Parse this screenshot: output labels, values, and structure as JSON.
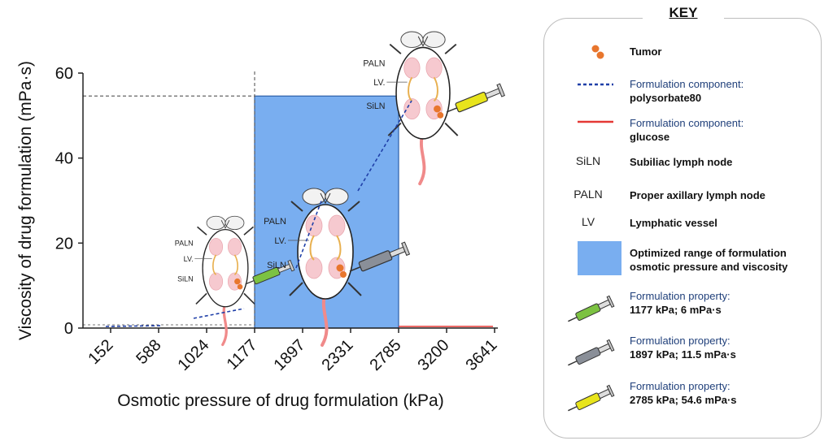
{
  "chart_data": {
    "type": "scatter",
    "xlabel": "Osmotic pressure of drug formulation (kPa)",
    "ylabel": "Viscosity of drug formulation (mPa·s)",
    "x_tick_labels": [
      "152",
      "588",
      "1024",
      "1177",
      "1897",
      "2331",
      "2785",
      "3200",
      "3641"
    ],
    "y_ticks": [
      0,
      20,
      40,
      60
    ],
    "ylim": [
      0,
      60
    ],
    "optimized_range": {
      "x_from": "1177",
      "x_to": "2785",
      "y_from": 0,
      "y_to": 54.6
    },
    "reference_lines": {
      "x": "1177",
      "y": 54.6
    },
    "points": [
      {
        "x": "1177",
        "y": 6,
        "syringe_color": "#7cc242"
      },
      {
        "x": "1897",
        "y": 11.5,
        "syringe_color": "#8a8f98"
      },
      {
        "x": "2785",
        "y": 54.6,
        "syringe_color": "#e8e41c"
      }
    ],
    "mouse_labels": [
      "PALN",
      "LV.",
      "SiLN"
    ]
  },
  "key": {
    "title": "KEY",
    "items": [
      {
        "label": "Tumor"
      },
      {
        "label_top": "Formulation component:",
        "label_bottom": "polysorbate80",
        "color": "#1f3fa8"
      },
      {
        "label_top": "Formulation component:",
        "label_bottom": "glucose",
        "color": "#e53935"
      },
      {
        "abbr": "SiLN",
        "label": "Subiliac lymph node"
      },
      {
        "abbr": "PALN",
        "label": "Proper axillary lymph node"
      },
      {
        "abbr": "LV",
        "label": "Lymphatic vessel"
      },
      {
        "label_top": "Optimized range of formulation",
        "label_bottom": "osmotic pressure and viscosity",
        "color": "#79aef0"
      },
      {
        "label_top": "Formulation property:",
        "label_bottom": "1177 kPa; 6 mPa·s",
        "color": "#7cc242"
      },
      {
        "label_top": "Formulation property:",
        "label_bottom": "1897 kPa; 11.5 mPa·s",
        "color": "#8a8f98"
      },
      {
        "label_top": "Formulation property:",
        "label_bottom": "2785 kPa; 54.6 mPa·s",
        "color": "#e8e41c"
      }
    ]
  }
}
